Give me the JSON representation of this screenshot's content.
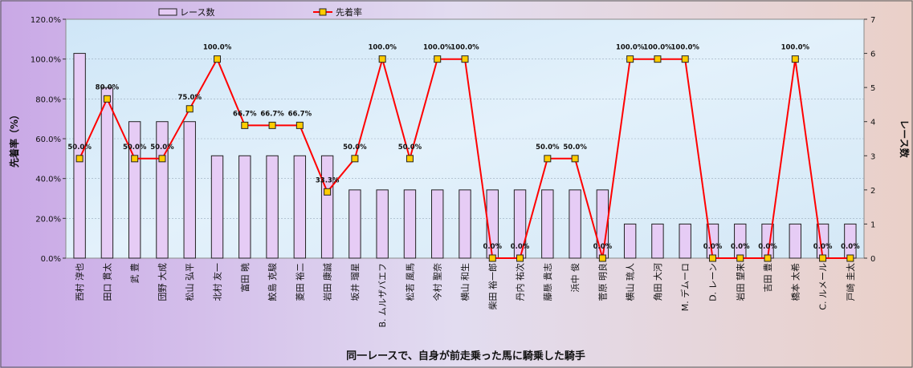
{
  "chart_data": {
    "type": "bar+line",
    "xlabel": "同一レースで、自身が前走乗った馬に騎乗した騎手",
    "ylabel_left": "先着率（%）",
    "ylabel_right": "レース数",
    "legend": {
      "bar_label": "レース数",
      "line_label": "先着率",
      "placement": "top"
    },
    "y_left": {
      "ticks": [
        "0.0%",
        "20.0%",
        "40.0%",
        "60.0%",
        "80.0%",
        "100.0%",
        "120.0%"
      ],
      "min": 0,
      "max": 120
    },
    "y_right": {
      "ticks": [
        "0",
        "1",
        "2",
        "3",
        "4",
        "5",
        "6",
        "7"
      ],
      "min": 0,
      "max": 7
    },
    "categories": [
      "西村 淳也",
      "田口 貫太",
      "武 豊",
      "団野 大成",
      "松山 弘平",
      "北村 友一",
      "富田 暁",
      "鮫島 克駿",
      "菱田 裕二",
      "岩田 康誠",
      "坂井 瑠星",
      "B. ムルザバエフ",
      "松若 風馬",
      "今村 聖奈",
      "横山 和生",
      "柴田 裕一郎",
      "丹内 祐次",
      "藤懸 貴志",
      "浜中 俊",
      "菅原 明良",
      "横山 琉人",
      "角田 大河",
      "M. デムーロ",
      "D. レーン",
      "岩田 望来",
      "吉田 豊",
      "橋本 太希",
      "C. ルメール",
      "戸崎 圭太"
    ],
    "races": [
      6,
      5,
      4,
      4,
      4,
      3,
      3,
      3,
      3,
      3,
      2,
      2,
      2,
      2,
      2,
      2,
      2,
      2,
      2,
      2,
      1,
      1,
      1,
      1,
      1,
      1,
      1,
      1,
      1
    ],
    "rate": [
      50,
      80,
      50,
      50,
      75,
      100,
      66.7,
      66.7,
      66.7,
      33.3,
      50,
      100,
      50,
      100,
      100,
      0,
      0,
      50,
      50,
      0,
      100,
      100,
      100,
      0,
      0,
      0,
      100,
      0,
      0
    ],
    "rate_labels": [
      "50.0%",
      "80.0%",
      "50.0%",
      "50.0%",
      "75.0%",
      "100.0%",
      "66.7%",
      "66.7%",
      "66.7%",
      "33.3%",
      "50.0%",
      "100.0%",
      "50.0%",
      "100.0%",
      "100.0%",
      "0.0%",
      "0.0%",
      "50.0%",
      "50.0%",
      "0.0%",
      "100.0%",
      "100.0%",
      "100.0%",
      "0.0%",
      "0.0%",
      "0.0%",
      "100.0%",
      "0.0%",
      "0.0%"
    ],
    "grid": true
  },
  "colors": {
    "bar_fill": "#e6ccf5",
    "bar_stroke": "#222222",
    "line": "#ff0000",
    "marker": "#ffcc00",
    "plot_bg": "#d6e9f6"
  }
}
